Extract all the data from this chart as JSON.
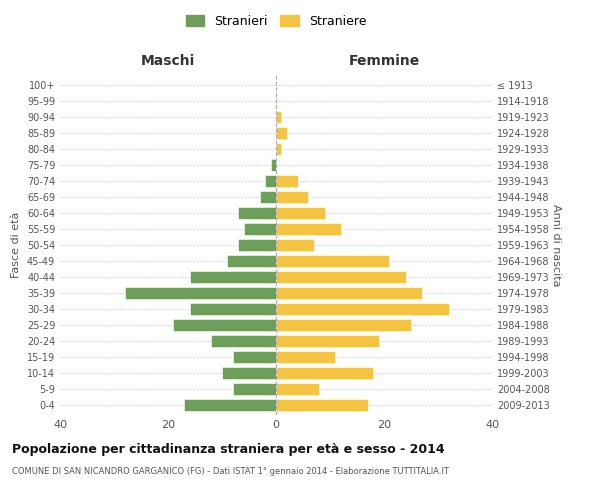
{
  "age_groups": [
    "0-4",
    "5-9",
    "10-14",
    "15-19",
    "20-24",
    "25-29",
    "30-34",
    "35-39",
    "40-44",
    "45-49",
    "50-54",
    "55-59",
    "60-64",
    "65-69",
    "70-74",
    "75-79",
    "80-84",
    "85-89",
    "90-94",
    "95-99",
    "100+"
  ],
  "birth_years": [
    "2009-2013",
    "2004-2008",
    "1999-2003",
    "1994-1998",
    "1989-1993",
    "1984-1988",
    "1979-1983",
    "1974-1978",
    "1969-1973",
    "1964-1968",
    "1959-1963",
    "1954-1958",
    "1949-1953",
    "1944-1948",
    "1939-1943",
    "1934-1938",
    "1929-1933",
    "1924-1928",
    "1919-1923",
    "1914-1918",
    "≤ 1913"
  ],
  "males": [
    17,
    8,
    10,
    8,
    12,
    19,
    16,
    28,
    16,
    9,
    7,
    6,
    7,
    3,
    2,
    1,
    0,
    0,
    0,
    0,
    0
  ],
  "females": [
    17,
    8,
    18,
    11,
    19,
    25,
    32,
    27,
    24,
    21,
    7,
    12,
    9,
    6,
    4,
    0,
    1,
    2,
    1,
    0,
    0
  ],
  "male_color": "#6d9e5a",
  "female_color": "#f5c342",
  "background_color": "#ffffff",
  "grid_color": "#cccccc",
  "title": "Popolazione per cittadinanza straniera per età e sesso - 2014",
  "subtitle": "COMUNE DI SAN NICANDRO GARGANICO (FG) - Dati ISTAT 1° gennaio 2014 - Elaborazione TUTTITALIA.IT",
  "xlabel_left": "Maschi",
  "xlabel_right": "Femmine",
  "ylabel_left": "Fasce di età",
  "ylabel_right": "Anni di nascita",
  "legend_male": "Stranieri",
  "legend_female": "Straniere",
  "xlim": 40,
  "centerline_color": "#aaaaaa"
}
